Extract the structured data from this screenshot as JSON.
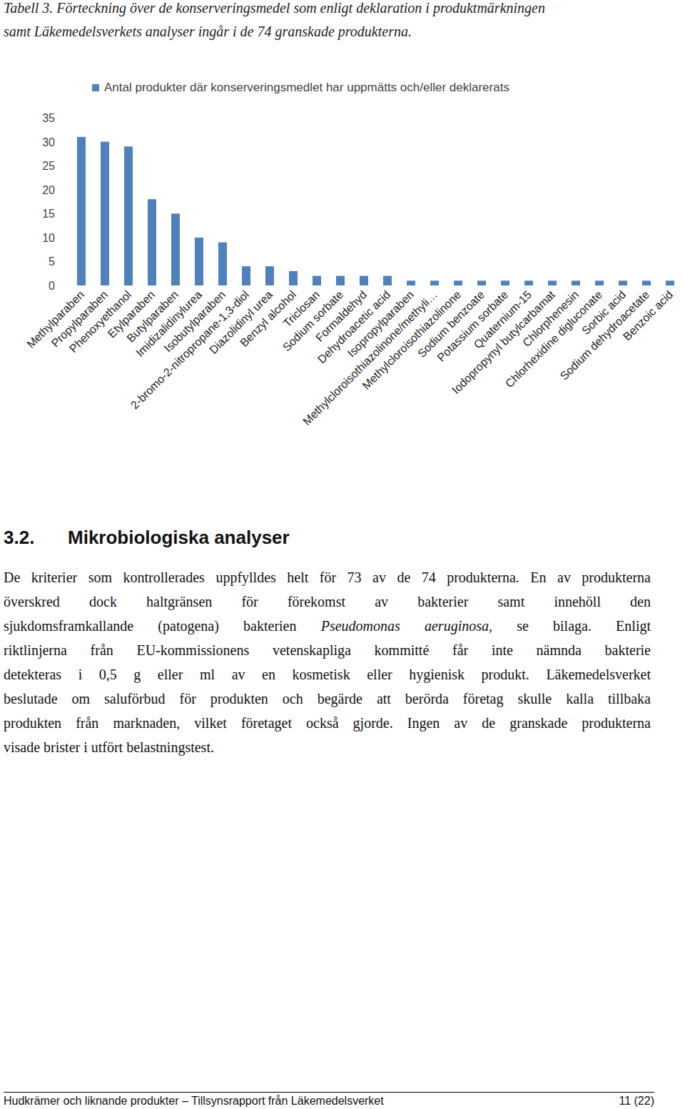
{
  "caption_lines": [
    "Tabell 3. Förteckning över de konserveringsmedel som enligt deklaration i produktmärkningen",
    "samt Läkemedelsverkets analyser ingår i de 74 granskade produkterna."
  ],
  "chart_data": {
    "type": "bar",
    "categories": [
      "Methylparaben",
      "Propylparaben",
      "Phenoxyethanol",
      "Etylparaben",
      "Butylparaben",
      "Imidizalidinylurea",
      "Isobutylparaben",
      "2-bromo-2-nitropropane-1,3-diol",
      "Diazolidinyl urea",
      "Benzyl alcohol",
      "Triclosan",
      "Sodium sorbate",
      "Formaldehyd",
      "Dehydroacetic acid",
      "Isopropylparaben",
      "Methylcloroisothiazolinone/methyli…",
      "Methylcloroisothiazolinone",
      "Sodium benzoate",
      "Potassium sorbate",
      "Quaternium-15",
      "Iodopropynyl butylcarbamat",
      "Chlorphenesin",
      "Chlorhexidine digluconate",
      "Sorbic acid",
      "Sodium dehydroacetate",
      "Benzoic acid"
    ],
    "series": [
      {
        "name": "Antal produkter där konserveringsmedlet har uppmätts och/eller deklarerats",
        "color": "#4f81bd",
        "values": [
          31,
          30,
          29,
          18,
          15,
          10,
          9,
          4,
          4,
          3,
          2,
          2,
          2,
          2,
          1,
          1,
          1,
          1,
          1,
          1,
          1,
          1,
          1,
          1,
          1,
          1
        ]
      }
    ],
    "ylim": [
      0,
      35
    ],
    "yticks": [
      0,
      5,
      10,
      15,
      20,
      25,
      30,
      35
    ],
    "grid": false,
    "legend": "top"
  },
  "section": {
    "number": "3.2.",
    "title": "Mikrobiologiska analyser",
    "lines": [
      "De kriterier som kontrollerades uppfylldes helt för 73 av de 74 produkterna. En av produkterna",
      "överskred dock haltgränsen för förekomst av bakterier samt innehöll den",
      [
        "sjukdomsframkallande (patogena) bakterien ",
        "Pseudomonas aeruginosa",
        ", se bilaga. Enligt"
      ],
      "riktlinjerna från EU-kommissionens vetenskapliga kommitté får inte nämnda bakterie",
      "detekteras i 0,5 g eller ml av en kosmetisk eller hygienisk produkt. Läkemedelsverket",
      "beslutade om saluförbud för produkten och begärde att berörda företag skulle kalla tillbaka",
      "produkten från marknaden, vilket företaget också gjorde. Ingen av de granskade produkterna",
      "visade brister i utfört belastningstest."
    ]
  },
  "footer": {
    "left": "Hudkrämer och liknande produkter – Tillsynsrapport från Läkemedelsverket",
    "right": "11 (22)"
  }
}
